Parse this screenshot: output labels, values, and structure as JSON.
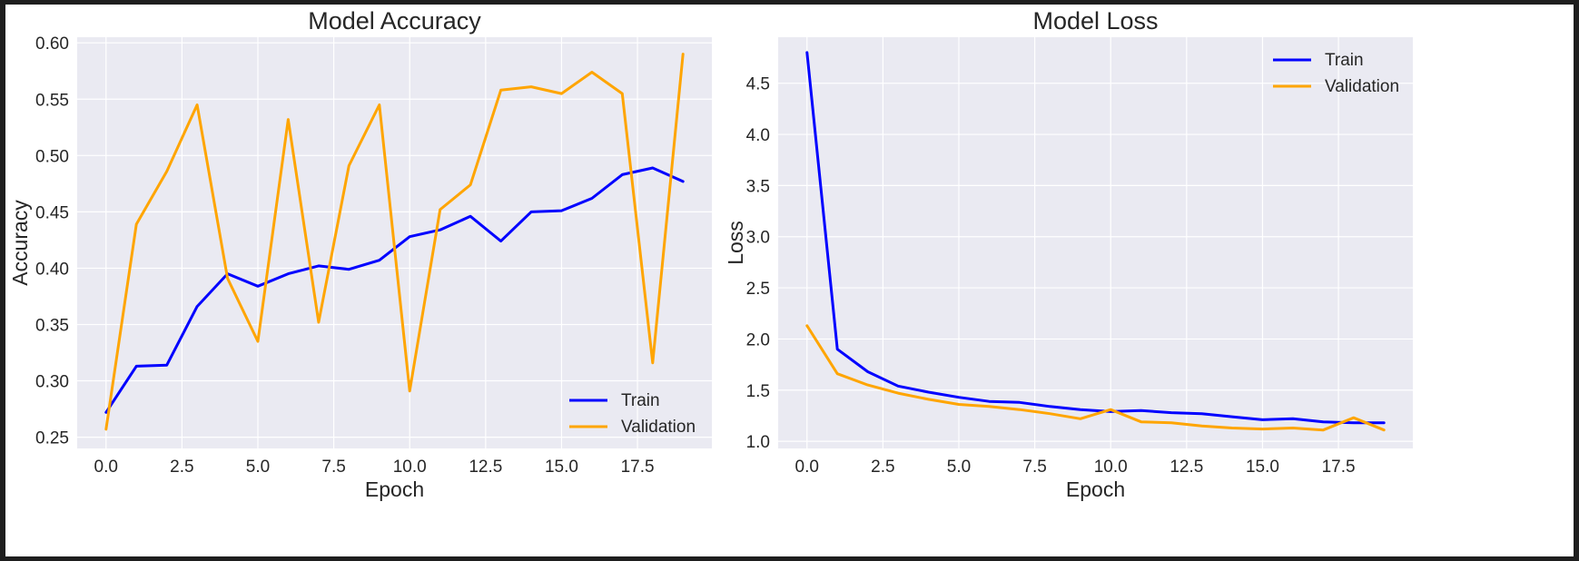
{
  "chart_data": [
    {
      "type": "line",
      "title": "Model Accuracy",
      "xlabel": "Epoch",
      "ylabel": "Accuracy",
      "x": [
        0,
        1,
        2,
        3,
        4,
        5,
        6,
        7,
        8,
        9,
        10,
        11,
        12,
        13,
        14,
        15,
        16,
        17,
        18,
        19
      ],
      "xlim": [
        -0.95,
        19.95
      ],
      "ylim": [
        0.24,
        0.605
      ],
      "xticks": [
        0,
        2.5,
        5,
        7.5,
        10,
        12.5,
        15,
        17.5
      ],
      "xtick_labels": [
        "0.0",
        "2.5",
        "5.0",
        "7.5",
        "10.0",
        "12.5",
        "15.0",
        "17.5"
      ],
      "yticks": [
        0.25,
        0.3,
        0.35,
        0.4,
        0.45,
        0.5,
        0.55,
        0.6
      ],
      "ytick_labels": [
        "0.25",
        "0.30",
        "0.35",
        "0.40",
        "0.45",
        "0.50",
        "0.55",
        "0.60"
      ],
      "grid": true,
      "legend_position": "lower-right",
      "series": [
        {
          "name": "Train",
          "color": "#0000ff",
          "values": [
            0.272,
            0.313,
            0.314,
            0.366,
            0.395,
            0.384,
            0.395,
            0.402,
            0.399,
            0.407,
            0.428,
            0.434,
            0.446,
            0.424,
            0.45,
            0.451,
            0.462,
            0.483,
            0.489,
            0.477
          ]
        },
        {
          "name": "Validation",
          "color": "#ffa500",
          "values": [
            0.257,
            0.439,
            0.486,
            0.545,
            0.391,
            0.335,
            0.532,
            0.352,
            0.491,
            0.545,
            0.291,
            0.452,
            0.474,
            0.558,
            0.561,
            0.555,
            0.574,
            0.555,
            0.316,
            0.59
          ]
        }
      ]
    },
    {
      "type": "line",
      "title": "Model Loss",
      "xlabel": "Epoch",
      "ylabel": "Loss",
      "x": [
        0,
        1,
        2,
        3,
        4,
        5,
        6,
        7,
        8,
        9,
        10,
        11,
        12,
        13,
        14,
        15,
        16,
        17,
        18,
        19
      ],
      "xlim": [
        -0.95,
        19.95
      ],
      "ylim": [
        0.93,
        4.95
      ],
      "xticks": [
        0,
        2.5,
        5,
        7.5,
        10,
        12.5,
        15,
        17.5
      ],
      "xtick_labels": [
        "0.0",
        "2.5",
        "5.0",
        "7.5",
        "10.0",
        "12.5",
        "15.0",
        "17.5"
      ],
      "yticks": [
        1.0,
        1.5,
        2.0,
        2.5,
        3.0,
        3.5,
        4.0,
        4.5
      ],
      "ytick_labels": [
        "1.0",
        "1.5",
        "2.0",
        "2.5",
        "3.0",
        "3.5",
        "4.0",
        "4.5"
      ],
      "grid": true,
      "legend_position": "upper-right",
      "series": [
        {
          "name": "Train",
          "color": "#0000ff",
          "values": [
            4.8,
            1.9,
            1.68,
            1.54,
            1.48,
            1.43,
            1.39,
            1.38,
            1.34,
            1.31,
            1.29,
            1.3,
            1.28,
            1.27,
            1.24,
            1.21,
            1.22,
            1.19,
            1.18,
            1.18
          ]
        },
        {
          "name": "Validation",
          "color": "#ffa500",
          "values": [
            2.13,
            1.66,
            1.55,
            1.47,
            1.41,
            1.36,
            1.34,
            1.31,
            1.27,
            1.22,
            1.31,
            1.19,
            1.18,
            1.15,
            1.13,
            1.12,
            1.13,
            1.11,
            1.23,
            1.11
          ]
        }
      ]
    }
  ]
}
